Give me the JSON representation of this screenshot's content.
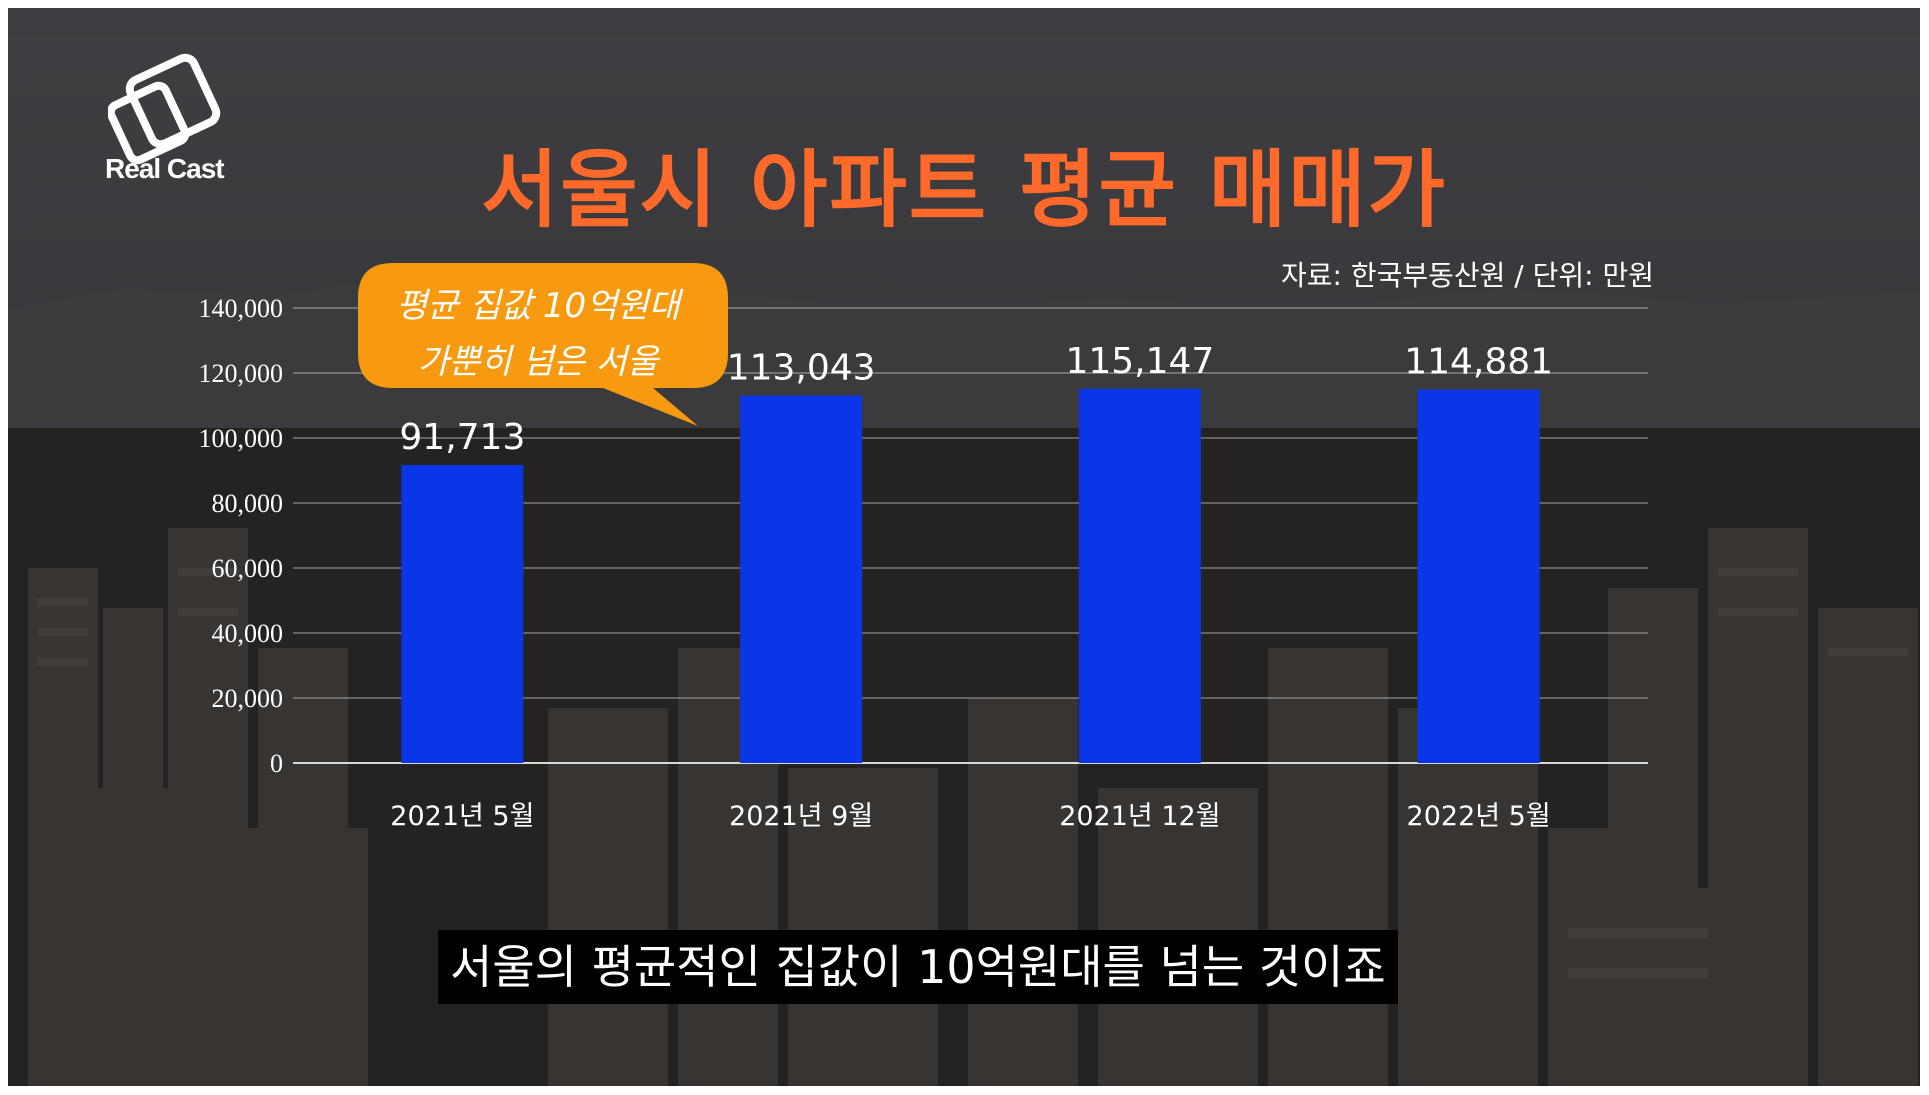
{
  "brand": {
    "name": "Real Cast"
  },
  "title": "서울시 아파트 평균 매매가",
  "source_note": "자료: 한국부동산원 / 단위: 만원",
  "callout": {
    "line1": "평균 집값 10억원대",
    "line2": "가뿐히 넘은 서울"
  },
  "subtitle": "서울의 평균적인 집값이 10억원대를 넘는 것이죠",
  "colors": {
    "title": "#ff6a2a",
    "bar": "#0a36e8",
    "callout": "#f79a0f",
    "text": "#ffffff"
  },
  "chart_data": {
    "type": "bar",
    "categories": [
      "2021년 5월",
      "2021년 9월",
      "2021년 12월",
      "2022년 5월"
    ],
    "values": [
      91713,
      113043,
      115147,
      114881
    ],
    "value_labels": [
      "91,713",
      "113,043",
      "115,147",
      "114,881"
    ],
    "ylim": [
      0,
      140000
    ],
    "yticks": [
      0,
      20000,
      40000,
      60000,
      80000,
      100000,
      120000,
      140000
    ],
    "ytick_labels": [
      "0",
      "20,000",
      "40,000",
      "60,000",
      "80,000",
      "100,000",
      "120,000",
      "140,000"
    ],
    "grid": true
  }
}
